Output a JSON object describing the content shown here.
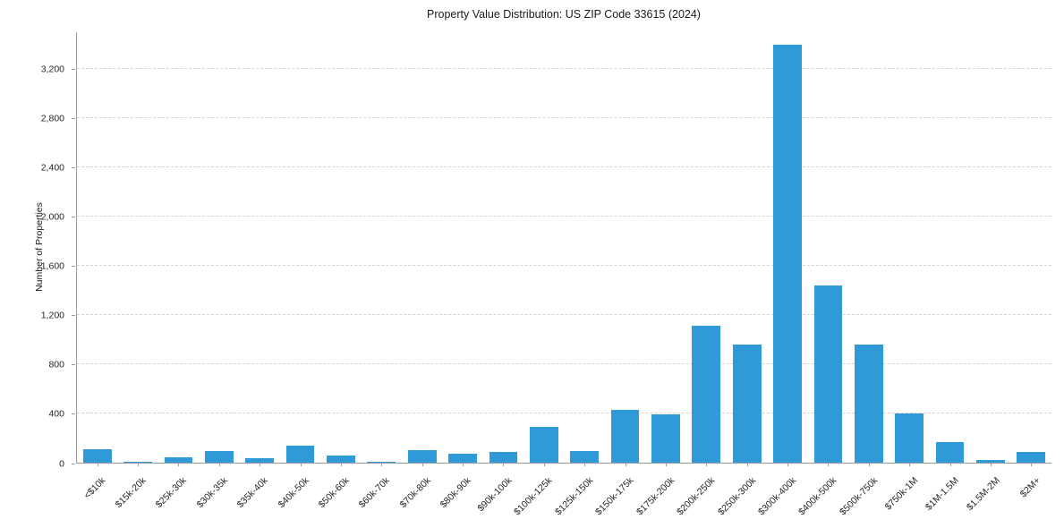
{
  "chart_data": {
    "type": "bar",
    "title": "Property Value Distribution: US ZIP Code 33615 (2024)",
    "xlabel": "",
    "ylabel": "Number of Properties",
    "categories": [
      "<$10k",
      "$15k-20k",
      "$25k-30k",
      "$30k-35k",
      "$35k-40k",
      "$40k-50k",
      "$50k-60k",
      "$60k-70k",
      "$70k-80k",
      "$80k-90k",
      "$90k-100k",
      "$100k-125k",
      "$125k-150k",
      "$150k-175k",
      "$175k-200k",
      "$200k-250k",
      "$250k-300k",
      "$300k-400k",
      "$400k-500k",
      "$500k-750k",
      "$750k-1M",
      "$1M-1.5M",
      "$1.5M-2M",
      "$2M+"
    ],
    "values": [
      110,
      5,
      45,
      95,
      40,
      140,
      55,
      10,
      100,
      70,
      85,
      290,
      95,
      430,
      390,
      1110,
      960,
      3400,
      1440,
      960,
      400,
      170,
      25,
      90
    ],
    "ylim": [
      0,
      3500
    ],
    "ytick_values": [
      0,
      400,
      800,
      1200,
      1600,
      2000,
      2400,
      2800,
      3200
    ],
    "ytick_labels": [
      "0",
      "400",
      "800",
      "1,200",
      "1,600",
      "2,000",
      "2,400",
      "2,800",
      "3,200"
    ],
    "bar_color": "#2e9bd8",
    "grid": "horizontal-dashed",
    "legend": "none"
  }
}
